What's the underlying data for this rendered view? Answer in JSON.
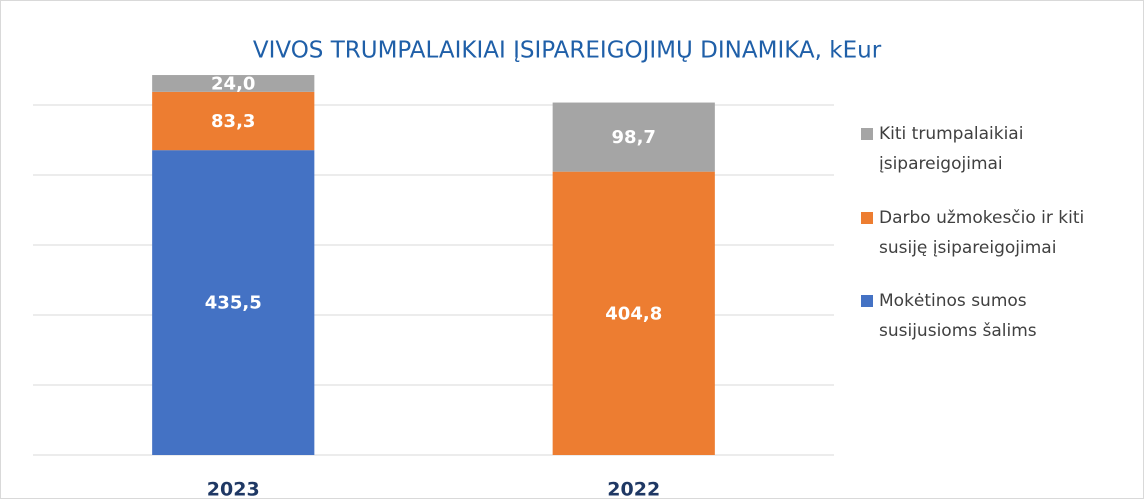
{
  "chart_data": {
    "type": "stacked_bar",
    "title": "VIVOS TRUMPALAIKIAI ĮSIPAREIGOJIMŲ DINAMIKA, kEur",
    "categories": [
      "2023",
      "2022"
    ],
    "series": [
      {
        "name": "Mokėtinos sumos susijusioms šalims",
        "color": "#4472c4",
        "values": [
          435.5,
          null
        ],
        "value_labels": [
          "435,5",
          null
        ]
      },
      {
        "name": "Darbo užmokesčio ir kiti susiję įsipareigojimai",
        "color": "#ed7d31",
        "values": [
          83.3,
          404.8
        ],
        "value_labels": [
          "83,3",
          "404,8"
        ]
      },
      {
        "name": "Kiti trumpalaikiai įsipareigojimai",
        "color": "#a5a5a5",
        "values": [
          24.0,
          98.7
        ],
        "value_labels": [
          "24,0",
          "98,7"
        ]
      }
    ],
    "ylim": [
      0,
      600
    ],
    "yticks": [
      0,
      100,
      200,
      300,
      400,
      500
    ],
    "grid": true,
    "legend": "right"
  }
}
